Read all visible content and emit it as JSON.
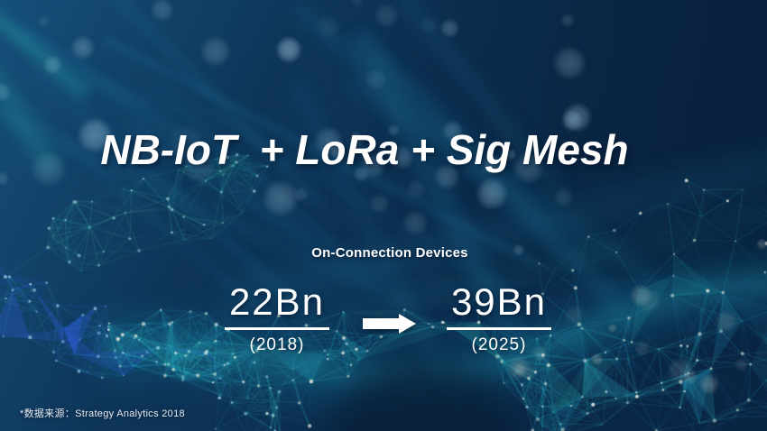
{
  "title": "NB-IoT  + LoRa + Sig Mesh",
  "subtitle": "On-Connection Devices",
  "stats": {
    "from": {
      "value": "22Bn",
      "year": "(2018)"
    },
    "to": {
      "value": "39Bn",
      "year": "(2025)"
    }
  },
  "footnote": "*数据来源：Strategy Analytics 2018",
  "colors": {
    "background_navy": "#0C2C4E",
    "background_light": "#16507A",
    "background_dark": "#0A2443",
    "mesh_teal": "#35D2C8",
    "mesh_cyan": "#2AA4CD",
    "mesh_blue": "#2E5FD8",
    "mesh_green": "#6EE1A0",
    "dot_warm": "#EEE9DC",
    "dot_cool": "#BDE0F2",
    "text_white": "#FFFFFF"
  }
}
